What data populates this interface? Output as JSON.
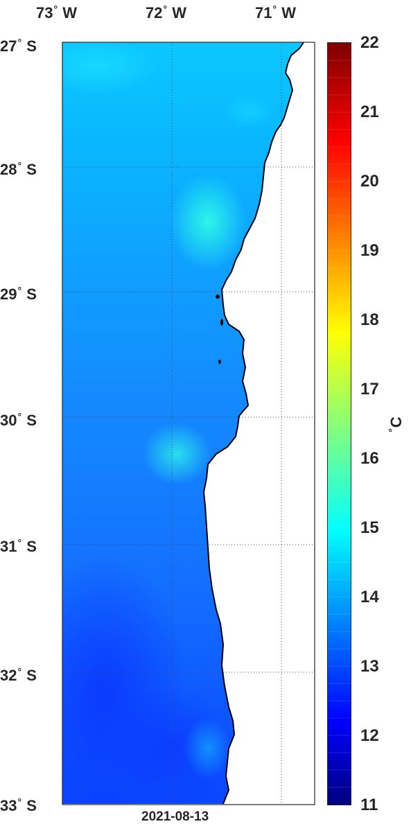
{
  "map": {
    "lon_labels": [
      {
        "deg": "73",
        "hem": "W"
      },
      {
        "deg": "72",
        "hem": "W"
      },
      {
        "deg": "71",
        "hem": "W"
      }
    ],
    "lat_labels": [
      {
        "deg": "27",
        "hem": "S"
      },
      {
        "deg": "28",
        "hem": "S"
      },
      {
        "deg": "29",
        "hem": "S"
      },
      {
        "deg": "30",
        "hem": "S"
      },
      {
        "deg": "31",
        "hem": "S"
      },
      {
        "deg": "32",
        "hem": "S"
      },
      {
        "deg": "33",
        "hem": "S"
      }
    ],
    "date": "2021-08-13",
    "grid": "dotted",
    "land_color": "#ffffff",
    "coast_color": "#000000"
  },
  "colorbar": {
    "min": 11,
    "max": 22,
    "ticks": [
      "22",
      "21",
      "20",
      "19",
      "18",
      "17",
      "16",
      "15",
      "14",
      "13",
      "12",
      "11"
    ],
    "unit_deg": "°",
    "unit": "C",
    "colormap": "jet"
  },
  "colors": {
    "frame": "#262626",
    "text": "#262626",
    "sst_12": "#0a3cff",
    "sst_13": "#1464f0",
    "sst_14": "#0aa0ff",
    "sst_15": "#00f0ff"
  }
}
